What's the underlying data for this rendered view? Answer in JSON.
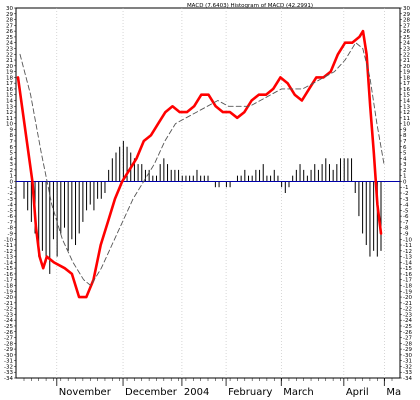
{
  "chart_data": {
    "type": "line",
    "title": "MACD (7.6403) Histogram of MACD (42.2991)",
    "xlabel": "",
    "ylabel": "",
    "ylim": [
      -34,
      30
    ],
    "xlim": [
      0,
      100
    ],
    "grid": "vertical",
    "y_ticks": [
      30,
      29,
      28,
      27,
      26,
      25,
      24,
      23,
      22,
      21,
      20,
      19,
      18,
      17,
      16,
      15,
      14,
      13,
      12,
      11,
      10,
      9,
      8,
      7,
      6,
      5,
      4,
      3,
      2,
      1,
      0,
      -1,
      -2,
      -3,
      -4,
      -5,
      -6,
      -7,
      -8,
      -9,
      -10,
      -11,
      -12,
      -13,
      -14,
      -15,
      -16,
      -17,
      -18,
      -19,
      -20,
      -21,
      -22,
      -23,
      -24,
      -25,
      -26,
      -27,
      -28,
      -29,
      -30,
      -31,
      -32,
      -33,
      -34
    ],
    "x_labels": [
      {
        "label": "November",
        "x": 10
      },
      {
        "label": "December",
        "x": 28
      },
      {
        "label": "2004",
        "x": 44
      },
      {
        "label": "February",
        "x": 56
      },
      {
        "label": "March",
        "x": 71
      },
      {
        "label": "April",
        "x": 88
      },
      {
        "label": "Ma",
        "x": 99
      }
    ],
    "series": [
      {
        "style": "solid",
        "color": "#ff0000",
        "points": [
          [
            0,
            18
          ],
          [
            2,
            9
          ],
          [
            4,
            0
          ],
          [
            5,
            -8
          ],
          [
            6,
            -13
          ],
          [
            7,
            -15
          ],
          [
            8,
            -13
          ],
          [
            10,
            -14
          ],
          [
            13,
            -15
          ],
          [
            15,
            -16
          ],
          [
            17,
            -20
          ],
          [
            19,
            -20
          ],
          [
            21,
            -17
          ],
          [
            23,
            -11
          ],
          [
            25,
            -7
          ],
          [
            27,
            -3
          ],
          [
            29,
            0
          ],
          [
            31,
            2
          ],
          [
            33,
            4
          ],
          [
            35,
            7
          ],
          [
            37,
            8
          ],
          [
            39,
            10
          ],
          [
            41,
            12
          ],
          [
            43,
            13
          ],
          [
            45,
            12
          ],
          [
            47,
            12
          ],
          [
            49,
            13
          ],
          [
            51,
            15
          ],
          [
            53,
            15
          ],
          [
            55,
            13
          ],
          [
            57,
            12
          ],
          [
            59,
            12
          ],
          [
            61,
            11
          ],
          [
            63,
            12
          ],
          [
            65,
            14
          ],
          [
            67,
            15
          ],
          [
            69,
            15
          ],
          [
            71,
            16
          ],
          [
            73,
            18
          ],
          [
            75,
            17
          ],
          [
            77,
            15
          ],
          [
            79,
            14
          ],
          [
            81,
            16
          ],
          [
            83,
            18
          ],
          [
            85,
            18
          ],
          [
            87,
            19
          ],
          [
            89,
            22
          ],
          [
            91,
            24
          ],
          [
            93,
            24
          ],
          [
            95,
            25
          ],
          [
            96,
            26
          ],
          [
            97,
            22
          ],
          [
            98,
            13
          ],
          [
            99,
            5
          ],
          [
            100,
            -4
          ],
          [
            101,
            -9
          ]
        ]
      },
      {
        "style": "dashed",
        "color": "#555555",
        "points": [
          [
            0,
            22
          ],
          [
            3,
            15
          ],
          [
            6,
            5
          ],
          [
            9,
            -4
          ],
          [
            12,
            -10
          ],
          [
            15,
            -14
          ],
          [
            18,
            -17
          ],
          [
            20,
            -18
          ],
          [
            23,
            -15
          ],
          [
            26,
            -11
          ],
          [
            29,
            -7
          ],
          [
            32,
            -3
          ],
          [
            35,
            0
          ],
          [
            38,
            3
          ],
          [
            41,
            7
          ],
          [
            44,
            10
          ],
          [
            47,
            11
          ],
          [
            50,
            12
          ],
          [
            53,
            13
          ],
          [
            56,
            14
          ],
          [
            59,
            13
          ],
          [
            62,
            13
          ],
          [
            65,
            13
          ],
          [
            68,
            14
          ],
          [
            71,
            15
          ],
          [
            74,
            16
          ],
          [
            77,
            16
          ],
          [
            80,
            16
          ],
          [
            83,
            17
          ],
          [
            86,
            18
          ],
          [
            89,
            19
          ],
          [
            92,
            21
          ],
          [
            95,
            24
          ],
          [
            97,
            23
          ],
          [
            99,
            18
          ],
          [
            101,
            10
          ],
          [
            103,
            3
          ]
        ]
      }
    ],
    "histogram": {
      "color": "#000000",
      "bars": [
        [
          0,
          -3
        ],
        [
          1,
          -5
        ],
        [
          2,
          -7
        ],
        [
          3,
          -9
        ],
        [
          4,
          -13
        ],
        [
          5,
          -12
        ],
        [
          6,
          -14
        ],
        [
          7,
          -16
        ],
        [
          8,
          -10
        ],
        [
          9,
          -13
        ],
        [
          10,
          -9
        ],
        [
          11,
          -8
        ],
        [
          12,
          -12
        ],
        [
          13,
          -10
        ],
        [
          14,
          -11
        ],
        [
          15,
          -9
        ],
        [
          16,
          -7
        ],
        [
          17,
          -5
        ],
        [
          18,
          -4
        ],
        [
          19,
          -5
        ],
        [
          20,
          -3
        ],
        [
          21,
          -3
        ],
        [
          22,
          -2
        ],
        [
          23,
          2
        ],
        [
          24,
          4
        ],
        [
          25,
          5
        ],
        [
          26,
          6
        ],
        [
          27,
          7
        ],
        [
          28,
          6
        ],
        [
          29,
          5
        ],
        [
          30,
          4
        ],
        [
          31,
          3
        ],
        [
          32,
          3
        ],
        [
          33,
          2
        ],
        [
          34,
          2
        ],
        [
          35,
          1
        ],
        [
          36,
          1
        ],
        [
          37,
          3
        ],
        [
          38,
          4
        ],
        [
          39,
          3
        ],
        [
          40,
          2
        ],
        [
          41,
          2
        ],
        [
          42,
          2
        ],
        [
          43,
          1
        ],
        [
          44,
          1
        ],
        [
          45,
          1
        ],
        [
          46,
          1
        ],
        [
          47,
          2
        ],
        [
          48,
          1
        ],
        [
          49,
          1
        ],
        [
          50,
          1
        ],
        [
          51,
          0
        ],
        [
          52,
          -1
        ],
        [
          53,
          -1
        ],
        [
          54,
          0
        ],
        [
          55,
          -1
        ],
        [
          56,
          -1
        ],
        [
          57,
          0
        ],
        [
          58,
          1
        ],
        [
          59,
          1
        ],
        [
          60,
          2
        ],
        [
          61,
          1
        ],
        [
          62,
          1
        ],
        [
          63,
          2
        ],
        [
          64,
          2
        ],
        [
          65,
          3
        ],
        [
          66,
          1
        ],
        [
          67,
          1
        ],
        [
          68,
          2
        ],
        [
          69,
          1
        ],
        [
          70,
          -1
        ],
        [
          71,
          -2
        ],
        [
          72,
          -1
        ],
        [
          73,
          1
        ],
        [
          74,
          2
        ],
        [
          75,
          3
        ],
        [
          76,
          2
        ],
        [
          77,
          1
        ],
        [
          78,
          2
        ],
        [
          79,
          3
        ],
        [
          80,
          2
        ],
        [
          81,
          3
        ],
        [
          82,
          4
        ],
        [
          83,
          3
        ],
        [
          84,
          2
        ],
        [
          85,
          3
        ],
        [
          86,
          4
        ],
        [
          87,
          4
        ],
        [
          88,
          4
        ],
        [
          89,
          4
        ],
        [
          90,
          -2
        ],
        [
          91,
          -6
        ],
        [
          92,
          -9
        ],
        [
          93,
          -11
        ],
        [
          94,
          -13
        ],
        [
          95,
          -12
        ],
        [
          96,
          -13
        ],
        [
          97,
          -12
        ]
      ]
    },
    "zero_line_color": "#0000aa"
  }
}
